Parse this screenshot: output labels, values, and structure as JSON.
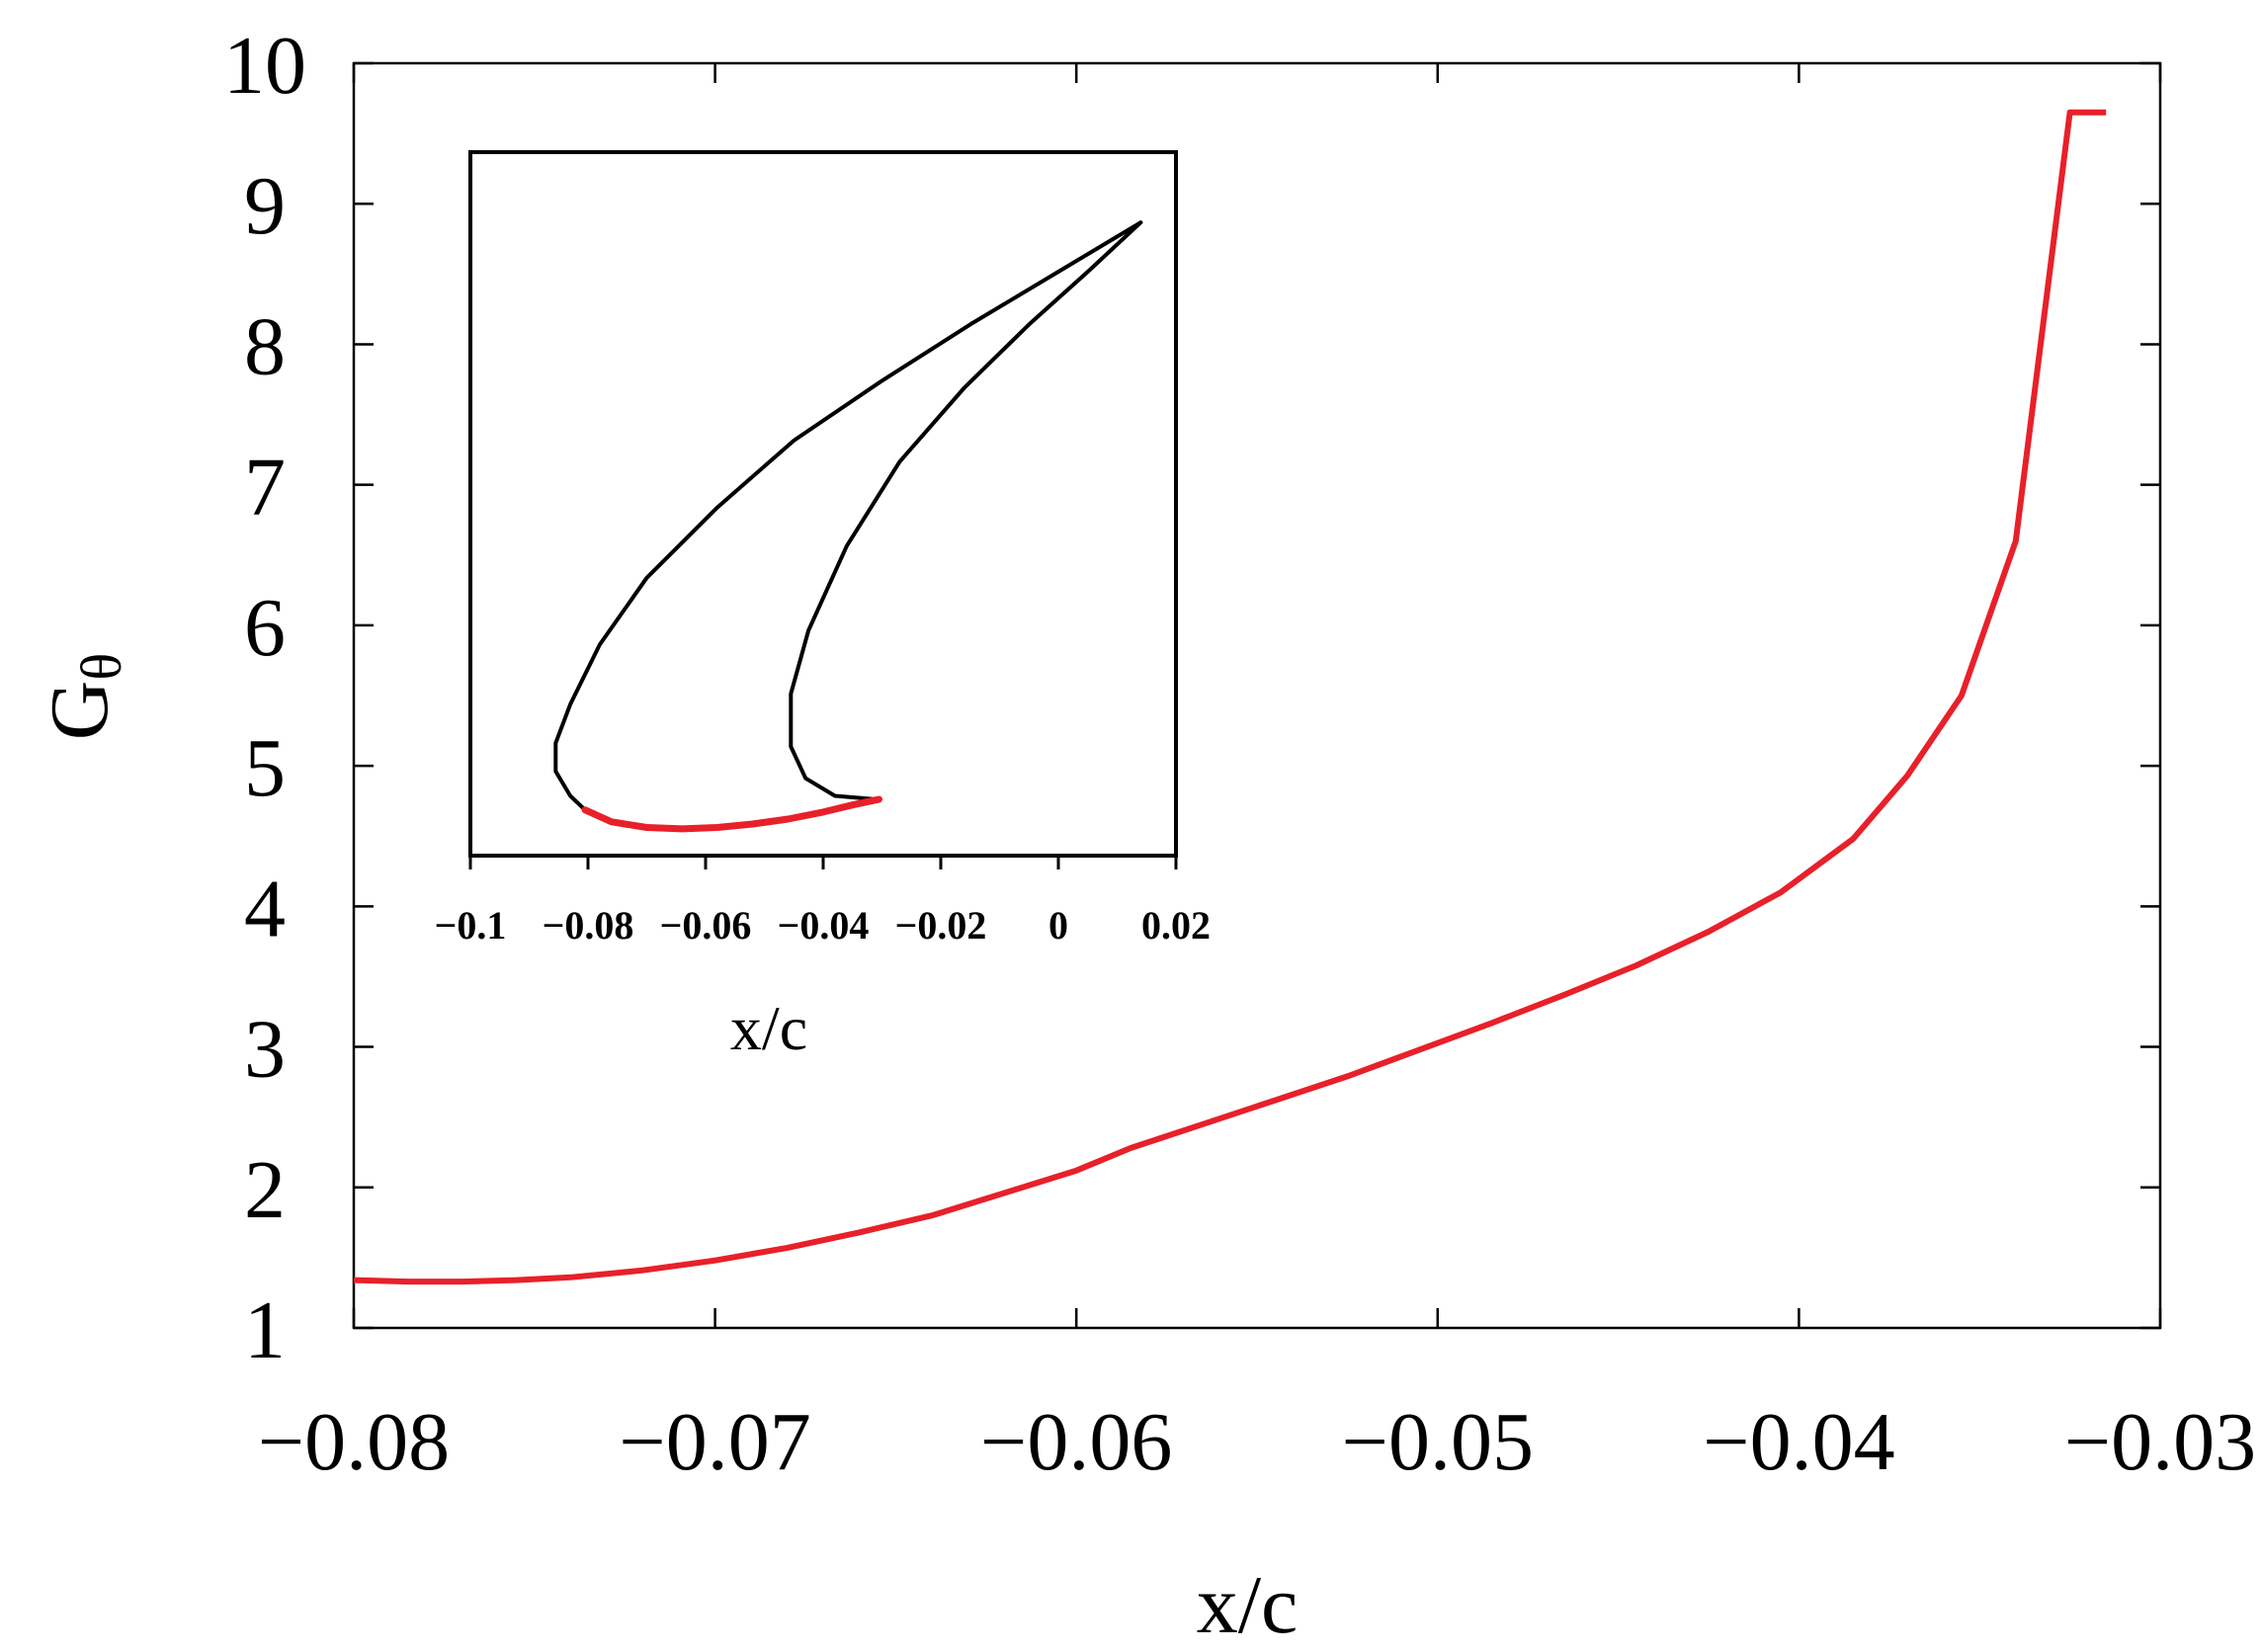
{
  "chart_data": [
    {
      "type": "line",
      "title": "",
      "xlabel": "x/c",
      "ylabel": "G",
      "ylabel_subscript": "θ",
      "xlim": [
        -0.08,
        -0.03
      ],
      "ylim": [
        1,
        10
      ],
      "xticks": [
        -0.08,
        -0.07,
        -0.06,
        -0.05,
        -0.04,
        -0.03
      ],
      "xtick_labels": [
        "−0.08",
        "−0.07",
        "−0.06",
        "−0.05",
        "−0.04",
        "−0.03"
      ],
      "yticks": [
        1,
        2,
        3,
        4,
        5,
        6,
        7,
        8,
        9,
        10
      ],
      "ytick_labels": [
        "1",
        "2",
        "3",
        "4",
        "5",
        "6",
        "7",
        "8",
        "9",
        "10"
      ],
      "grid": false,
      "legend": "none",
      "series": [
        {
          "color": "#e8202a",
          "x": [
            -0.08,
            -0.0785,
            -0.077,
            -0.0755,
            -0.074,
            -0.072,
            -0.07,
            -0.068,
            -0.066,
            -0.064,
            -0.062,
            -0.06,
            -0.0585,
            -0.0565,
            -0.0545,
            -0.0525,
            -0.0505,
            -0.0485,
            -0.0465,
            -0.0445,
            -0.0425,
            -0.0405,
            -0.0385,
            -0.037,
            -0.0355,
            -0.034,
            -0.0325,
            -0.0315
          ],
          "y": [
            1.34,
            1.33,
            1.33,
            1.34,
            1.36,
            1.41,
            1.48,
            1.57,
            1.68,
            1.8,
            1.96,
            2.12,
            2.28,
            2.45,
            2.62,
            2.79,
            2.98,
            3.17,
            3.37,
            3.58,
            3.82,
            4.1,
            4.48,
            4.93,
            5.5,
            6.6,
            9.65,
            9.65
          ]
        }
      ]
    },
    {
      "type": "line",
      "title": "",
      "xlabel": "x/c",
      "ylabel": "",
      "xlim": [
        -0.1,
        0.02
      ],
      "xticks": [
        -0.1,
        -0.08,
        -0.06,
        -0.04,
        -0.02,
        0,
        0.02
      ],
      "xtick_labels": [
        "−0.1",
        "−0.08",
        "−0.06",
        "−0.04",
        "−0.02",
        "0",
        "0.02"
      ],
      "grid": false,
      "legend": "none",
      "series": [
        {
          "color": "#000000",
          "x": [
            0.014,
            0.0,
            -0.015,
            -0.03,
            -0.045,
            -0.058,
            -0.07,
            -0.078,
            -0.083,
            -0.0855,
            -0.0855,
            -0.083,
            -0.0805
          ],
          "y": [
            0.9,
            0.83,
            0.755,
            0.675,
            0.59,
            0.495,
            0.395,
            0.3,
            0.215,
            0.16,
            0.12,
            0.085,
            0.065
          ]
        },
        {
          "color": "#000000",
          "x": [
            0.014,
            0.005,
            -0.005,
            -0.016,
            -0.027,
            -0.036,
            -0.0425,
            -0.0455,
            -0.0455,
            -0.043,
            -0.038,
            -0.031
          ],
          "y": [
            0.9,
            0.83,
            0.755,
            0.665,
            0.56,
            0.44,
            0.32,
            0.23,
            0.155,
            0.11,
            0.085,
            0.08
          ]
        },
        {
          "color": "#e8202a",
          "x": [
            -0.0805,
            -0.076,
            -0.07,
            -0.064,
            -0.058,
            -0.052,
            -0.046,
            -0.04,
            -0.035,
            -0.0305
          ],
          "y": [
            0.065,
            0.048,
            0.04,
            0.038,
            0.04,
            0.045,
            0.052,
            0.062,
            0.072,
            0.08
          ]
        }
      ]
    }
  ]
}
